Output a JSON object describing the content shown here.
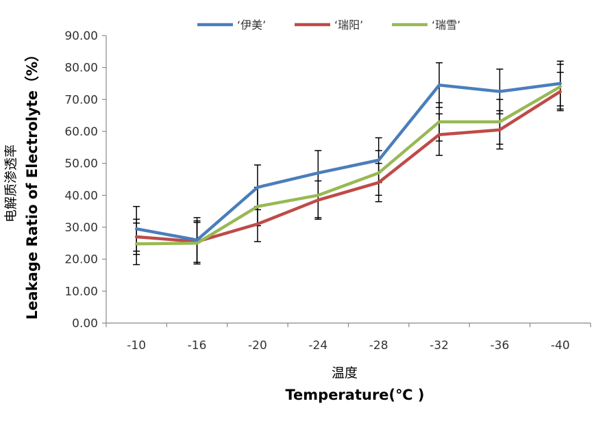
{
  "chart_data": {
    "type": "line",
    "categories": [
      "-10",
      "-16",
      "-20",
      "-24",
      "-28",
      "-32",
      "-36",
      "-40"
    ],
    "series": [
      {
        "name": "‘伊美’",
        "color": "#4a7ebb",
        "values": [
          29.5,
          26.0,
          42.5,
          47.0,
          51.0,
          74.5,
          72.5,
          75.0
        ],
        "errors": [
          7.0,
          7.0,
          7.0,
          7.0,
          7.0,
          7.0,
          7.0,
          7.0
        ]
      },
      {
        "name": "‘瑞阳’",
        "color": "#be4b48",
        "values": [
          27.0,
          25.5,
          31.0,
          38.5,
          44.0,
          59.0,
          60.5,
          72.5
        ],
        "errors": [
          5.5,
          6.5,
          5.5,
          6.0,
          6.0,
          6.5,
          6.0,
          6.0
        ]
      },
      {
        "name": "‘瑞雪’",
        "color": "#98b954",
        "values": [
          24.8,
          25.0,
          36.5,
          40.0,
          47.0,
          63.0,
          63.0,
          74.0
        ],
        "errors": [
          6.5,
          6.5,
          6.0,
          7.0,
          7.0,
          6.0,
          7.0,
          7.0
        ]
      }
    ],
    "yticks": [
      "0.00",
      "10.00",
      "20.00",
      "30.00",
      "40.00",
      "50.00",
      "60.00",
      "70.00",
      "80.00",
      "90.00"
    ],
    "ylim": [
      0,
      90
    ],
    "ylabel_cn": "电解质渗透率",
    "ylabel_en": "Leakage Ratio of Electrolyte（%）",
    "xlabel_cn": "温度",
    "xlabel_en": "Temperature(℃ )",
    "legend_position": "top",
    "grid": false
  }
}
